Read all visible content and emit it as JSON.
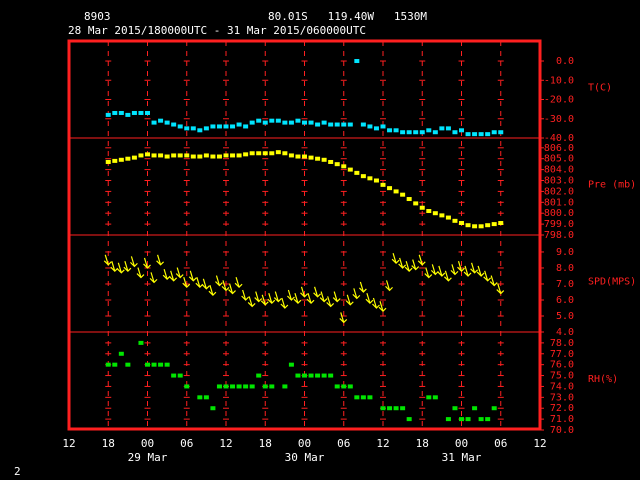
{
  "header": {
    "station": "8903",
    "location": "80.01S   119.40W   1530M",
    "period": "28 Mar 2015/180000UTC - 31 Mar 2015/060000UTC"
  },
  "footer": "2",
  "chart_data": {
    "type": "scatter",
    "xlim": [
      0,
      72
    ],
    "xticks": [
      {
        "value": 0,
        "label": "12"
      },
      {
        "value": 6,
        "label": "18"
      },
      {
        "value": 12,
        "label": "00"
      },
      {
        "value": 18,
        "label": "06"
      },
      {
        "value": 24,
        "label": "12"
      },
      {
        "value": 30,
        "label": "18"
      },
      {
        "value": 36,
        "label": "00"
      },
      {
        "value": 42,
        "label": "06"
      },
      {
        "value": 48,
        "label": "12"
      },
      {
        "value": 54,
        "label": "18"
      },
      {
        "value": 60,
        "label": "00"
      },
      {
        "value": 66,
        "label": "06"
      },
      {
        "value": 72,
        "label": "12"
      }
    ],
    "day_labels": [
      {
        "value": 12,
        "label": "29 Mar"
      },
      {
        "value": 36,
        "label": "30 Mar"
      },
      {
        "value": 60,
        "label": "31 Mar"
      }
    ],
    "x": [
      6,
      7,
      8,
      9,
      10,
      11,
      12,
      13,
      14,
      15,
      16,
      17,
      18,
      19,
      20,
      21,
      22,
      23,
      24,
      25,
      26,
      27,
      28,
      29,
      30,
      31,
      32,
      33,
      34,
      35,
      36,
      37,
      38,
      39,
      40,
      41,
      42,
      43,
      44,
      45,
      46,
      47,
      48,
      49,
      50,
      51,
      52,
      53,
      54,
      55,
      56,
      57,
      58,
      59,
      60,
      61,
      62,
      63,
      64,
      65,
      66
    ],
    "panels": [
      {
        "name": "T(C)",
        "mark": "square",
        "color": "#00e5ff",
        "ylim": [
          -40,
          10.4
        ],
        "yticks": [
          {
            "value": 0,
            "label": "0.0"
          },
          {
            "value": -10,
            "label": "-10.0"
          },
          {
            "value": -20,
            "label": "-20.0"
          },
          {
            "value": -30,
            "label": "-30.0"
          },
          {
            "value": -40,
            "label": "-40.0"
          }
        ],
        "values": [
          -28,
          -27,
          -27,
          -28,
          -27,
          -27,
          -27,
          -32,
          -31,
          -32,
          -33,
          -34,
          -35,
          -35,
          -36,
          -35,
          -34,
          -34,
          -34,
          -34,
          -33,
          -34,
          -32,
          -31,
          -32,
          -31,
          -31,
          -32,
          -32,
          -31,
          -32,
          -32,
          -33,
          -32,
          -33,
          -33,
          -33,
          -33,
          0,
          -33,
          -34,
          -35,
          -34,
          -36,
          -36,
          -37,
          -37,
          -37,
          -37,
          -36,
          -37,
          -35,
          -35,
          -37,
          -36,
          -38,
          -38,
          -38,
          -38,
          -37,
          -37
        ]
      },
      {
        "name": "Pre (mb)",
        "mark": "square",
        "color": "#ffff00",
        "ylim": [
          798,
          806.9
        ],
        "yticks": [
          {
            "value": 806,
            "label": "806.0"
          },
          {
            "value": 805,
            "label": "805.0"
          },
          {
            "value": 804,
            "label": "804.0"
          },
          {
            "value": 803,
            "label": "803.0"
          },
          {
            "value": 802,
            "label": "802.0"
          },
          {
            "value": 801,
            "label": "801.0"
          },
          {
            "value": 800,
            "label": "800.0"
          },
          {
            "value": 799,
            "label": "799.0"
          },
          {
            "value": 798,
            "label": "798.0"
          }
        ],
        "values": [
          804.7,
          804.8,
          804.9,
          805.0,
          805.1,
          805.3,
          805.4,
          805.3,
          805.3,
          805.2,
          805.3,
          805.3,
          805.3,
          805.2,
          805.2,
          805.3,
          805.2,
          805.2,
          805.3,
          805.3,
          805.3,
          805.4,
          805.5,
          805.5,
          805.5,
          805.5,
          805.6,
          805.5,
          805.3,
          805.2,
          805.2,
          805.1,
          805.0,
          804.9,
          804.7,
          804.5,
          804.3,
          804.0,
          803.7,
          803.4,
          803.2,
          803.0,
          802.6,
          802.3,
          802.0,
          801.7,
          801.3,
          800.9,
          800.5,
          800.2,
          800.0,
          799.8,
          799.6,
          799.3,
          799.1,
          798.9,
          798.8,
          798.8,
          798.9,
          799.0,
          799.1
        ]
      },
      {
        "name": "SPD(MPS)",
        "mark": "arrow",
        "color": "#ffff00",
        "ylim": [
          4,
          10.06
        ],
        "yticks": [
          {
            "value": 9,
            "label": "9.0"
          },
          {
            "value": 8,
            "label": "8.0"
          },
          {
            "value": 7,
            "label": "7.0"
          },
          {
            "value": 6,
            "label": "6.0"
          },
          {
            "value": 5,
            "label": "5.0"
          },
          {
            "value": 4,
            "label": "4.0"
          }
        ],
        "values": [
          8.2,
          7.8,
          7.7,
          7.8,
          8.1,
          7.4,
          8.0,
          7.1,
          8.2,
          7.3,
          7.2,
          7.4,
          6.8,
          7.2,
          6.8,
          6.7,
          6.3,
          6.9,
          6.6,
          6.4,
          6.8,
          6.0,
          5.6,
          5.9,
          5.7,
          5.8,
          5.9,
          5.5,
          6.0,
          5.8,
          6.2,
          5.8,
          6.2,
          5.9,
          5.6,
          5.9,
          4.6,
          5.7,
          6.1,
          6.5,
          5.8,
          5.5,
          5.3,
          6.6,
          8.3,
          8.0,
          7.8,
          7.9,
          8.2,
          7.4,
          7.6,
          7.5,
          7.2,
          7.6,
          7.8,
          7.5,
          7.7,
          7.5,
          7.2,
          6.9,
          6.4
        ]
      },
      {
        "name": "RH(%)",
        "mark": "square",
        "color": "#00e600",
        "ylim": [
          70,
          79
        ],
        "yticks": [
          {
            "value": 78,
            "label": "78.0"
          },
          {
            "value": 77,
            "label": "77.0"
          },
          {
            "value": 76,
            "label": "76.0"
          },
          {
            "value": 75,
            "label": "75.0"
          },
          {
            "value": 74,
            "label": "74.0"
          },
          {
            "value": 73,
            "label": "73.0"
          },
          {
            "value": 72,
            "label": "72.0"
          },
          {
            "value": 71,
            "label": "71.0"
          },
          {
            "value": 70,
            "label": "70.0"
          }
        ],
        "values": [
          76,
          76,
          77,
          76,
          null,
          78,
          76,
          76,
          76,
          76,
          75,
          75,
          74,
          null,
          73,
          73,
          72,
          74,
          74,
          74,
          74,
          74,
          74,
          75,
          74,
          74,
          null,
          74,
          76,
          75,
          75,
          75,
          75,
          75,
          75,
          74,
          74,
          74,
          73,
          73,
          73,
          null,
          72,
          72,
          72,
          72,
          71,
          null,
          null,
          73,
          73,
          null,
          71,
          72,
          71,
          71,
          72,
          71,
          71,
          72,
          null
        ]
      }
    ]
  }
}
